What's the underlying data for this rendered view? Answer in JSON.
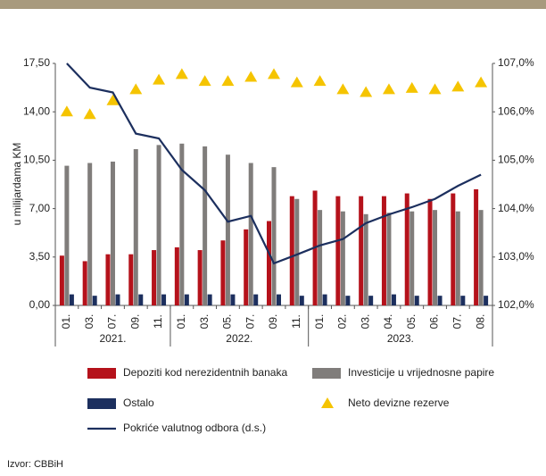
{
  "chart_data": {
    "type": "bar",
    "source": "Izvor: CBBiH",
    "ylabel": "u milijardama KM",
    "categories": [
      "01.",
      "03.",
      "07.",
      "09.",
      "11.",
      "01.",
      "03.",
      "05.",
      "07.",
      "09.",
      "11.",
      "01.",
      "02.",
      "03.",
      "04.",
      "05.",
      "06.",
      "07.",
      "08."
    ],
    "x_groups": [
      {
        "label": "2021.",
        "count": 5
      },
      {
        "label": "2022.",
        "count": 6
      },
      {
        "label": "2023.",
        "count": 8
      }
    ],
    "series": [
      {
        "name": "Depoziti kod nerezidentnih banaka",
        "type": "bar",
        "color": "#b5121b",
        "values": [
          3.6,
          3.2,
          3.7,
          3.7,
          4.0,
          4.2,
          4.0,
          4.7,
          5.5,
          6.1,
          7.9,
          8.3,
          7.9,
          7.9,
          7.9,
          8.1,
          7.7,
          8.1,
          8.4
        ]
      },
      {
        "name": "Investicije u vrijednosne papire",
        "type": "bar",
        "color": "#807d7b",
        "values": [
          10.1,
          10.3,
          10.4,
          11.3,
          11.6,
          11.7,
          11.5,
          10.9,
          10.3,
          10.0,
          7.7,
          6.9,
          6.8,
          6.6,
          6.7,
          6.8,
          6.9,
          6.8,
          6.9
        ]
      },
      {
        "name": "Ostalo",
        "type": "bar",
        "color": "#1c2f5e",
        "values": [
          0.8,
          0.7,
          0.8,
          0.8,
          0.8,
          0.8,
          0.8,
          0.8,
          0.8,
          0.8,
          0.7,
          0.8,
          0.7,
          0.7,
          0.8,
          0.7,
          0.7,
          0.7,
          0.7
        ]
      },
      {
        "name": "Neto devizne rezerve",
        "type": "scatter",
        "color": "#f5c400",
        "values": [
          14.0,
          13.8,
          14.8,
          15.6,
          16.3,
          16.7,
          16.2,
          16.2,
          16.5,
          16.7,
          16.1,
          16.2,
          15.6,
          15.4,
          15.6,
          15.7,
          15.6,
          15.8,
          16.1
        ]
      },
      {
        "name": "Pokriće valutnog odbora (d.s.)",
        "type": "line",
        "axis": "y2",
        "color": "#1c2f5e",
        "values": [
          107.0,
          106.5,
          106.4,
          105.55,
          105.45,
          104.8,
          104.38,
          103.73,
          103.85,
          102.87,
          103.05,
          103.24,
          103.37,
          103.7,
          103.88,
          104.03,
          104.2,
          104.47,
          104.7
        ]
      }
    ],
    "ylim": [
      0,
      17.5
    ],
    "yticks": [
      {
        "value": 0,
        "label": "0,00"
      },
      {
        "value": 3.5,
        "label": "3,50"
      },
      {
        "value": 7,
        "label": "7,00"
      },
      {
        "value": 10.5,
        "label": "10,50"
      },
      {
        "value": 14,
        "label": "14,00"
      },
      {
        "value": 17.5,
        "label": "17,50"
      }
    ],
    "y2lim": [
      102,
      107
    ],
    "y2ticks": [
      {
        "value": 102,
        "label": "102,0%"
      },
      {
        "value": 103,
        "label": "103,0%"
      },
      {
        "value": 104,
        "label": "104,0%"
      },
      {
        "value": 105,
        "label": "105,0%"
      },
      {
        "value": 106,
        "label": "106,0%"
      },
      {
        "value": 107,
        "label": "107,0%"
      }
    ],
    "grid": false
  }
}
